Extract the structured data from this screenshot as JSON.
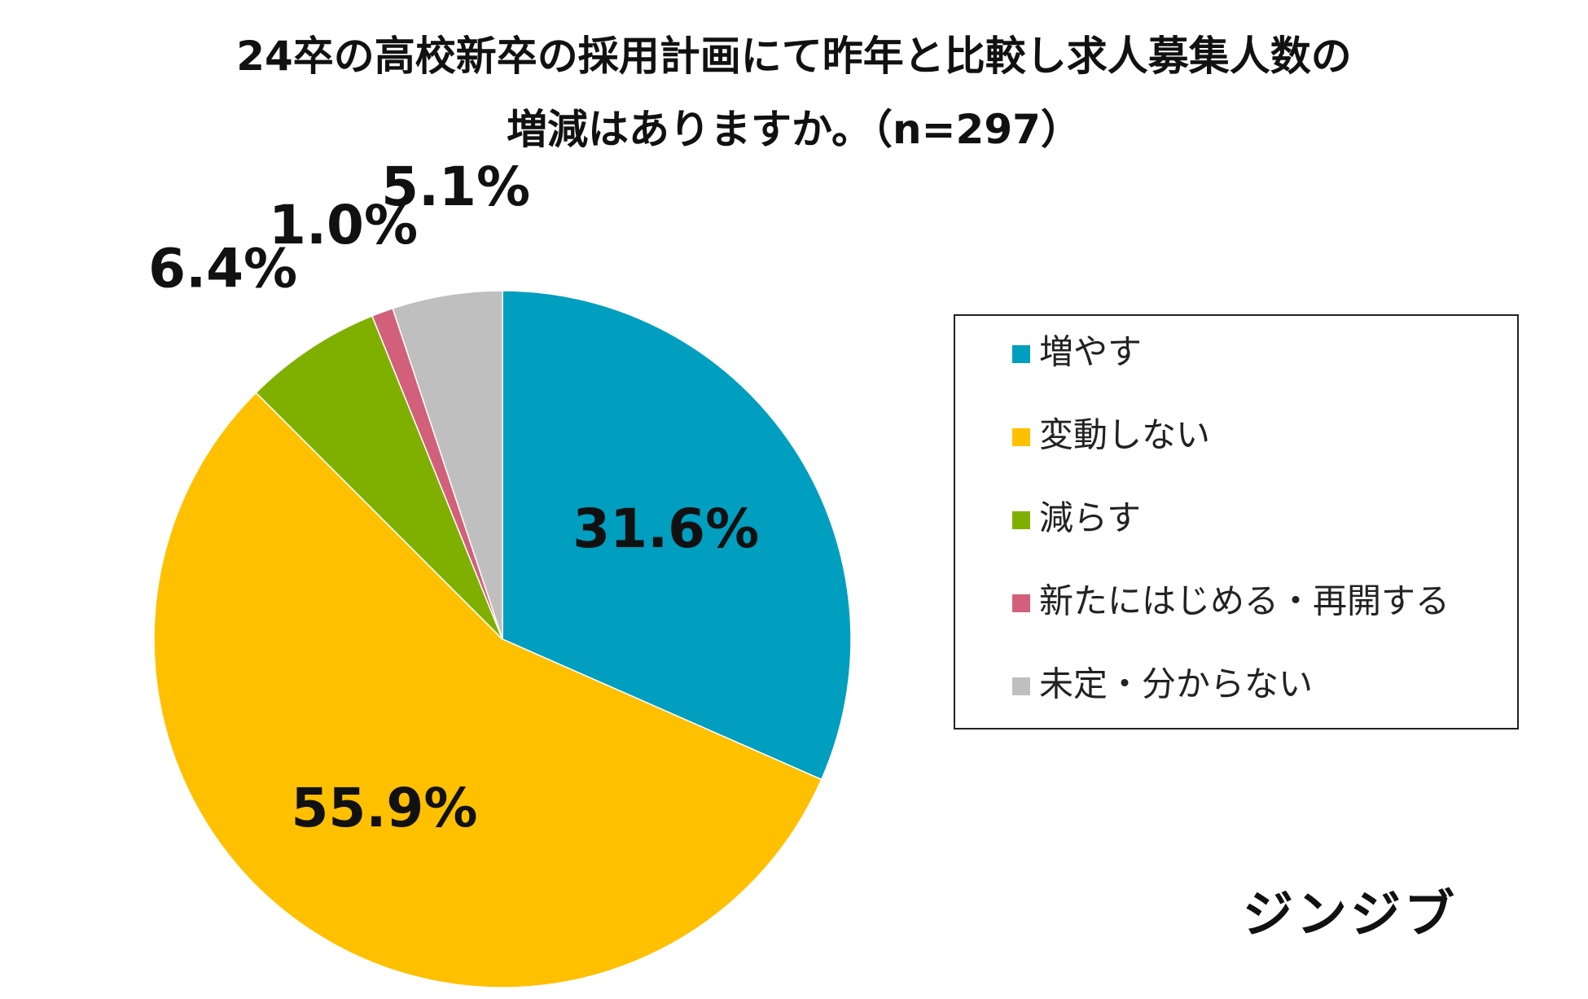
{
  "title": {
    "line1": "24卒の高校新卒の採用計画にて昨年と比較し求人募集人数の",
    "line2": "増減はありますか。（n=297）"
  },
  "logo": "ジンジブ",
  "chart_data": {
    "type": "pie",
    "title": "24卒の高校新卒の採用計画にて昨年と比較し求人募集人数の増減はありますか。（n=297）",
    "start_angle_deg": 0,
    "direction": "clockwise",
    "legend_position": "right",
    "slices": [
      {
        "name": "増やす",
        "value": 31.6,
        "label": "31.6%",
        "color": "#009EBF"
      },
      {
        "name": "変動しない",
        "value": 55.9,
        "label": "55.9%",
        "color": "#FFC000"
      },
      {
        "name": "減らす",
        "value": 6.4,
        "label": "6.4%",
        "color": "#7FB000"
      },
      {
        "name": "新たにはじめる・再開する",
        "value": 1.0,
        "label": "1.0%",
        "color": "#D2607A"
      },
      {
        "name": "未定・分からない",
        "value": 5.1,
        "label": "5.1%",
        "color": "#BFBFBF"
      }
    ]
  }
}
